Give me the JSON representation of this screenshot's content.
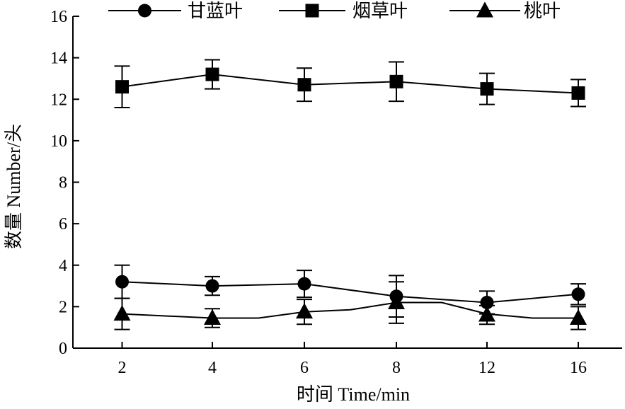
{
  "chart_data": {
    "type": "line",
    "xlabel": "时间 Time/min",
    "ylabel": "数量 Number/头",
    "categories": [
      "2",
      "4",
      "6",
      "8",
      "12",
      "16"
    ],
    "ylim": [
      0,
      16
    ],
    "yticks": [
      "0",
      "2",
      "4",
      "6",
      "8",
      "10",
      "12",
      "14",
      "16"
    ],
    "grid": false,
    "legend_position": "top",
    "series": [
      {
        "name": "甘蓝叶",
        "marker": "circle",
        "values": [
          3.2,
          3.0,
          3.1,
          2.5,
          2.2,
          2.6
        ],
        "error": [
          0.8,
          0.45,
          0.65,
          1.0,
          0.55,
          0.5
        ]
      },
      {
        "name": "烟草叶",
        "marker": "square",
        "values": [
          12.6,
          13.2,
          12.7,
          12.85,
          12.5,
          12.3
        ],
        "error": [
          1.0,
          0.7,
          0.8,
          0.95,
          0.75,
          0.65
        ]
      },
      {
        "name": "桃叶",
        "marker": "triangle",
        "values": [
          1.65,
          1.45,
          1.75,
          2.2,
          1.6,
          1.45
        ],
        "error": [
          0.75,
          0.45,
          0.6,
          1.0,
          0.45,
          0.55
        ],
        "line_values": [
          1.65,
          1.55,
          1.45,
          1.45,
          1.75,
          1.85,
          2.2,
          2.2,
          1.65,
          1.45,
          1.45
        ]
      }
    ],
    "colors": {
      "line": "#000000",
      "marker": "#000000"
    }
  }
}
